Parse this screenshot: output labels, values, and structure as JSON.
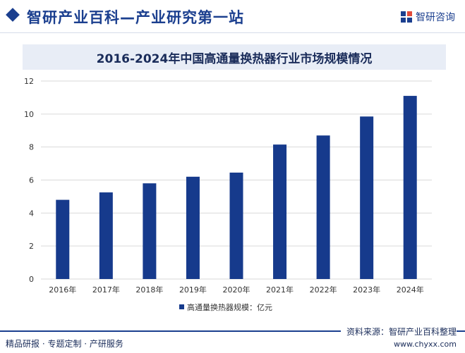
{
  "header": {
    "site_title": "智研产业百科—产业研究第一站",
    "brand_name": "智研咨询"
  },
  "chart_data": {
    "type": "bar",
    "title": "2016-2024年中国高通量换热器行业市场规模情况",
    "categories": [
      "2016年",
      "2017年",
      "2018年",
      "2019年",
      "2020年",
      "2021年",
      "2022年",
      "2023年",
      "2024年"
    ],
    "series": [
      {
        "name": "高通量换热器规模：亿元",
        "values": [
          4.8,
          5.25,
          5.8,
          6.2,
          6.45,
          8.15,
          8.7,
          9.85,
          11.1
        ]
      }
    ],
    "ylim": [
      0,
      12
    ],
    "yticks": [
      "0",
      "2",
      "4",
      "6",
      "8",
      "10",
      "12"
    ],
    "grid": true,
    "legend_position": "bottom-center",
    "colors": {
      "bar": "#163a8c",
      "grid": "#d9d9d9"
    }
  },
  "footer": {
    "left_text": "精品研报 · 专题定制 · 产研服务",
    "source": "资料来源：智研产业百科整理",
    "url": "www.chyxx.com"
  }
}
